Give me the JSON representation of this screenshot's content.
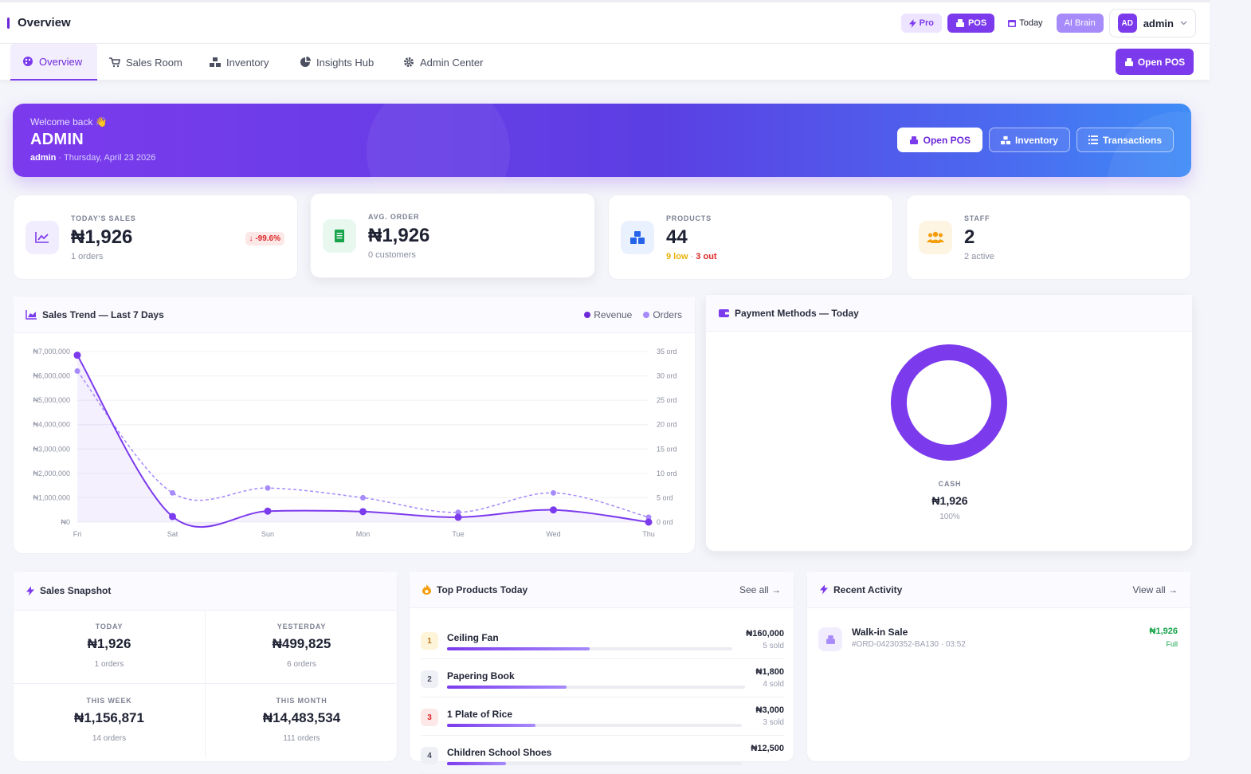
{
  "topbar": {
    "title": "Overview",
    "pro_label": "Pro",
    "pos_label": "POS",
    "today_label": "Today",
    "ai_label": "AI Brain",
    "avatar_initials": "AD",
    "user_name": "admin"
  },
  "nav": {
    "tabs": [
      {
        "label": "Overview",
        "icon": "palette-icon"
      },
      {
        "label": "Sales Room",
        "icon": "cart-icon"
      },
      {
        "label": "Inventory",
        "icon": "boxes-icon"
      },
      {
        "label": "Insights Hub",
        "icon": "pie-chart-icon"
      },
      {
        "label": "Admin Center",
        "icon": "gear-icon"
      }
    ],
    "open_pos_label": "Open POS"
  },
  "hero": {
    "welcome": "Welcome back 👋",
    "name": "ADMIN",
    "user": "admin",
    "date": "Thursday, April 23 2026",
    "actions": [
      "Open POS",
      "Inventory",
      "Transactions"
    ]
  },
  "stats": [
    {
      "label": "TODAY'S SALES",
      "value": "₦1,926",
      "meta": "1 orders",
      "delta": "-99.6%"
    },
    {
      "label": "AVG. ORDER",
      "value": "₦1,926",
      "meta": "0 customers"
    },
    {
      "label": "PRODUCTS",
      "value": "44",
      "low": "9 low",
      "out": "3 out"
    },
    {
      "label": "STAFF",
      "value": "2",
      "meta": "2 active"
    }
  ],
  "sales_trend": {
    "title": "Sales Trend — Last 7 Days",
    "legend_revenue": "Revenue",
    "legend_orders": "Orders"
  },
  "chart_data": {
    "type": "line",
    "title": "Sales Trend — Last 7 Days",
    "categories": [
      "Fri",
      "Sat",
      "Sun",
      "Mon",
      "Tue",
      "Wed",
      "Thu"
    ],
    "y_ticks": [
      "₦7,000,000",
      "₦6,000,000",
      "₦5,000,000",
      "₦4,000,000",
      "₦3,000,000",
      "₦2,000,000",
      "₦1,000,000",
      "₦0"
    ],
    "y2_ticks": [
      "35 ord",
      "30 ord",
      "25 ord",
      "20 ord",
      "15 ord",
      "10 ord",
      "5 ord",
      "0 ord"
    ],
    "ylim": [
      0,
      7000000
    ],
    "y2lim": [
      0,
      35
    ],
    "series": [
      {
        "name": "Revenue",
        "axis": "left",
        "values": [
          6850000,
          230000,
          450000,
          430000,
          200000,
          499825,
          1926
        ],
        "color": "#7c3aed"
      },
      {
        "name": "Orders",
        "axis": "right",
        "values": [
          31,
          6,
          7,
          5,
          2,
          6,
          1
        ],
        "color": "#a78bfa"
      }
    ],
    "grid": true,
    "legend_position": "top-right"
  },
  "payment": {
    "title": "Payment Methods — Today",
    "method": "CASH",
    "amount": "₦1,926",
    "share": "100%"
  },
  "snapshot": {
    "title": "Sales Snapshot",
    "cells": [
      {
        "label": "TODAY",
        "value": "₦1,926",
        "meta": "1 orders"
      },
      {
        "label": "YESTERDAY",
        "value": "₦499,825",
        "meta": "6 orders"
      },
      {
        "label": "THIS WEEK",
        "value": "₦1,156,871",
        "meta": "14 orders"
      },
      {
        "label": "THIS MONTH",
        "value": "₦14,483,534",
        "meta": "111 orders"
      }
    ]
  },
  "top_products": {
    "title": "Top Products Today",
    "link": "See all →",
    "items": [
      {
        "rank": "1",
        "name": "Ceiling Fan",
        "amount": "₦160,000",
        "sold": "5 sold",
        "share": 0.5
      },
      {
        "rank": "2",
        "name": "Papering Book",
        "amount": "₦1,800",
        "sold": "4 sold",
        "share": 0.4
      },
      {
        "rank": "3",
        "name": "1 Plate of Rice",
        "amount": "₦3,000",
        "sold": "3 sold",
        "share": 0.3
      },
      {
        "rank": "4",
        "name": "Children School Shoes",
        "amount": "₦12,500",
        "sold": "",
        "share": 0.2
      }
    ]
  },
  "activity": {
    "title": "Recent Activity",
    "link": "View all →",
    "items": [
      {
        "title": "Walk-in Sale",
        "sub": "#ORD-04230352-BA130 · 03:52",
        "amount": "₦1,926",
        "status": "Full"
      }
    ]
  }
}
